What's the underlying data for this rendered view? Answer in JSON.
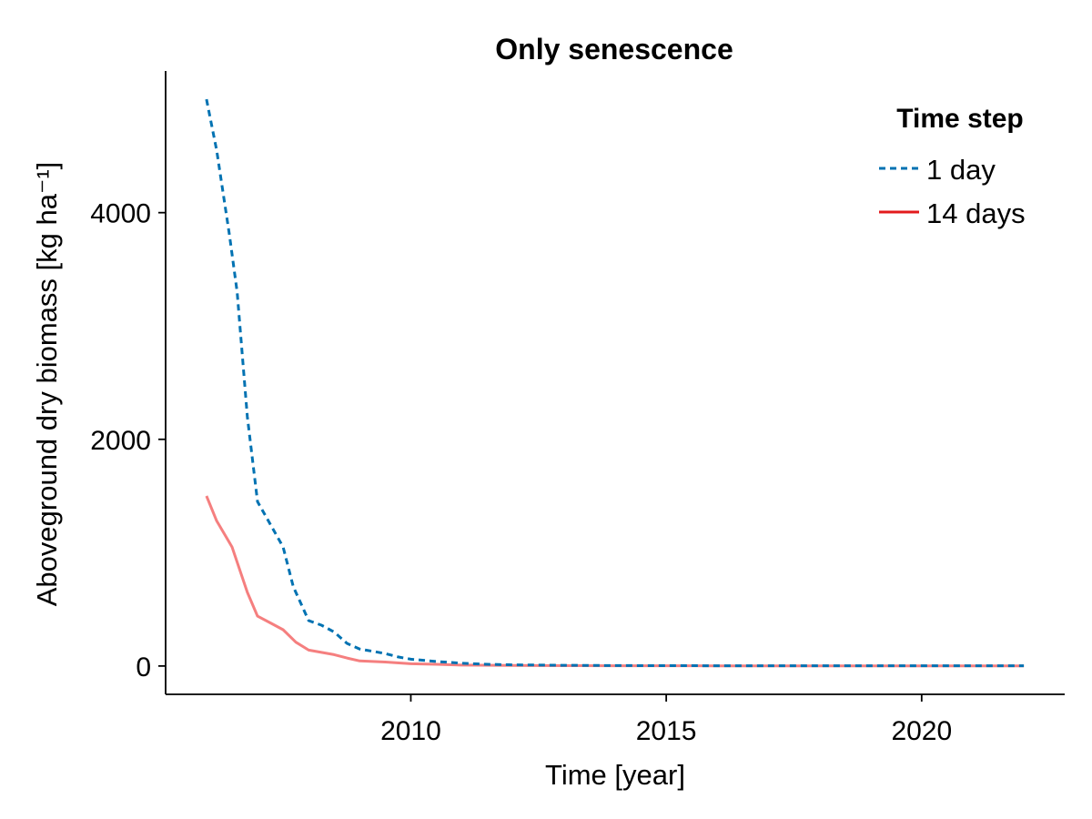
{
  "chart_data": {
    "type": "line",
    "title": "Only senescence",
    "xlabel": "Time [year]",
    "ylabel": "Aboveground dry biomass [kg ha⁻¹]",
    "xlim": [
      2005.2,
      2022.8
    ],
    "ylim": [
      -250,
      5250
    ],
    "xticks": [
      2010,
      2015,
      2020
    ],
    "yticks": [
      0,
      2000,
      4000
    ],
    "xtick_labels": [
      "2010",
      "2015",
      "2020"
    ],
    "ytick_labels": [
      "0",
      "2000",
      "4000"
    ],
    "grid": false,
    "legend": {
      "title": "Time step",
      "placement": "top-right"
    },
    "series": [
      {
        "name": "1 day",
        "color": "#0072b2",
        "style": "dashed",
        "x": [
          2006.0,
          2006.2,
          2006.45,
          2006.6,
          2006.8,
          2007.0,
          2007.25,
          2007.5,
          2007.7,
          2008.0,
          2008.25,
          2008.5,
          2008.75,
          2009.0,
          2009.25,
          2009.5,
          2009.75,
          2010.0,
          2010.5,
          2011.0,
          2011.5,
          2012.0,
          2013.0,
          2014.0,
          2015.0,
          2016.0,
          2017.0,
          2018.0,
          2019.0,
          2020.0,
          2021.0,
          2022.0
        ],
        "y": [
          5000,
          4550,
          3800,
          3300,
          2200,
          1450,
          1250,
          1050,
          700,
          400,
          360,
          300,
          200,
          150,
          130,
          110,
          80,
          60,
          40,
          25,
          15,
          10,
          6,
          4,
          3,
          2,
          2,
          2,
          2,
          2,
          2,
          2
        ]
      },
      {
        "name": "14 days",
        "color": "#f57f7f",
        "style": "solid",
        "x": [
          2006.0,
          2006.2,
          2006.5,
          2006.8,
          2007.0,
          2007.25,
          2007.5,
          2007.75,
          2008.0,
          2008.25,
          2008.5,
          2008.75,
          2009.0,
          2009.5,
          2010.0,
          2010.5,
          2011.0,
          2012.0,
          2013.0,
          2014.0,
          2015.0,
          2016.0,
          2017.0,
          2018.0,
          2019.0,
          2020.0,
          2021.0,
          2022.0
        ],
        "y": [
          1500,
          1280,
          1050,
          650,
          440,
          380,
          320,
          210,
          140,
          120,
          100,
          70,
          45,
          35,
          20,
          15,
          8,
          5,
          3,
          2,
          2,
          1,
          1,
          1,
          1,
          1,
          1,
          1
        ]
      }
    ],
    "legend_line_color_14days": "#e31a1c"
  }
}
